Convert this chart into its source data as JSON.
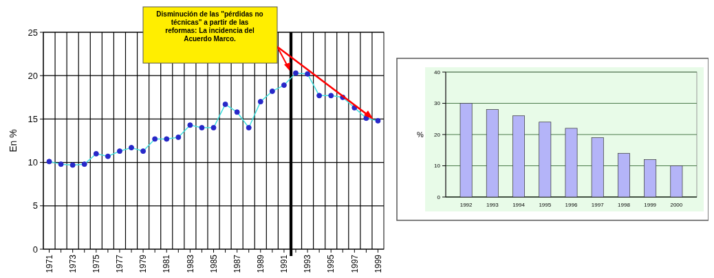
{
  "chart_data": [
    {
      "type": "line",
      "ylabel": "En %",
      "x": [
        1971,
        1972,
        1973,
        1974,
        1975,
        1976,
        1977,
        1978,
        1979,
        1980,
        1981,
        1982,
        1983,
        1984,
        1985,
        1986,
        1987,
        1988,
        1989,
        1990,
        1991,
        1992,
        1993,
        1994,
        1995,
        1996,
        1997,
        1998,
        1999
      ],
      "series": [
        {
          "color": "#40e0e0",
          "values": [
            10.1,
            9.8,
            9.7,
            9.8,
            11.0,
            10.7,
            11.3,
            11.7,
            11.3,
            12.7,
            12.7,
            12.9,
            14.3,
            14.0,
            14.0,
            16.7,
            15.8,
            14.0,
            17.0,
            18.2,
            18.9,
            20.3,
            20.2,
            17.7,
            17.7,
            17.5,
            16.3,
            15.1,
            14.8
          ]
        }
      ],
      "xlim": [
        1970.5,
        1999.5
      ],
      "xticks": [
        1971,
        {
          "value": 1972,
          "label": null
        },
        1973,
        {
          "value": 1974,
          "label": null
        },
        1975,
        {
          "value": 1976,
          "label": null
        },
        1977,
        {
          "value": 1978,
          "label": null
        },
        1979,
        {
          "value": 1980,
          "label": null
        },
        1981,
        {
          "value": 1982,
          "label": null
        },
        1983,
        {
          "value": 1984,
          "label": null
        },
        1985,
        {
          "value": 1986,
          "label": null
        },
        1987,
        {
          "value": 1988,
          "label": null
        },
        1989,
        {
          "value": 1990,
          "label": null
        },
        1991,
        {
          "value": 1992,
          "label": null
        },
        1993,
        {
          "value": 1994,
          "label": null
        },
        1995,
        {
          "value": 1996,
          "label": null
        },
        1997,
        {
          "value": 1998,
          "label": null
        },
        1999
      ],
      "ylim": [
        0,
        25
      ],
      "yticks": [
        0,
        5,
        10,
        15,
        20,
        25
      ],
      "grid": true,
      "marker": "circle",
      "line_style": "solid",
      "ref_lines": [
        {
          "axis": "x",
          "value": 1991.6,
          "color": "#000000"
        }
      ],
      "annotations": [
        "Disminución de las \"pérdidas no técnicas\" a partir de las reformas: La incidencia del Acuerdo Marco."
      ]
    },
    {
      "type": "bar",
      "ylabel": "%",
      "categories": [
        "1992",
        "1993",
        "1994",
        "1995",
        "1996",
        "1997",
        "1998",
        "1999",
        "2000"
      ],
      "values": [
        30,
        28,
        26,
        24,
        22,
        19,
        14,
        12,
        10
      ],
      "color": "#b4b4f8",
      "ylim": [
        0,
        40
      ],
      "yticks": [
        0,
        10,
        20,
        30,
        40
      ],
      "grid": "y"
    }
  ]
}
